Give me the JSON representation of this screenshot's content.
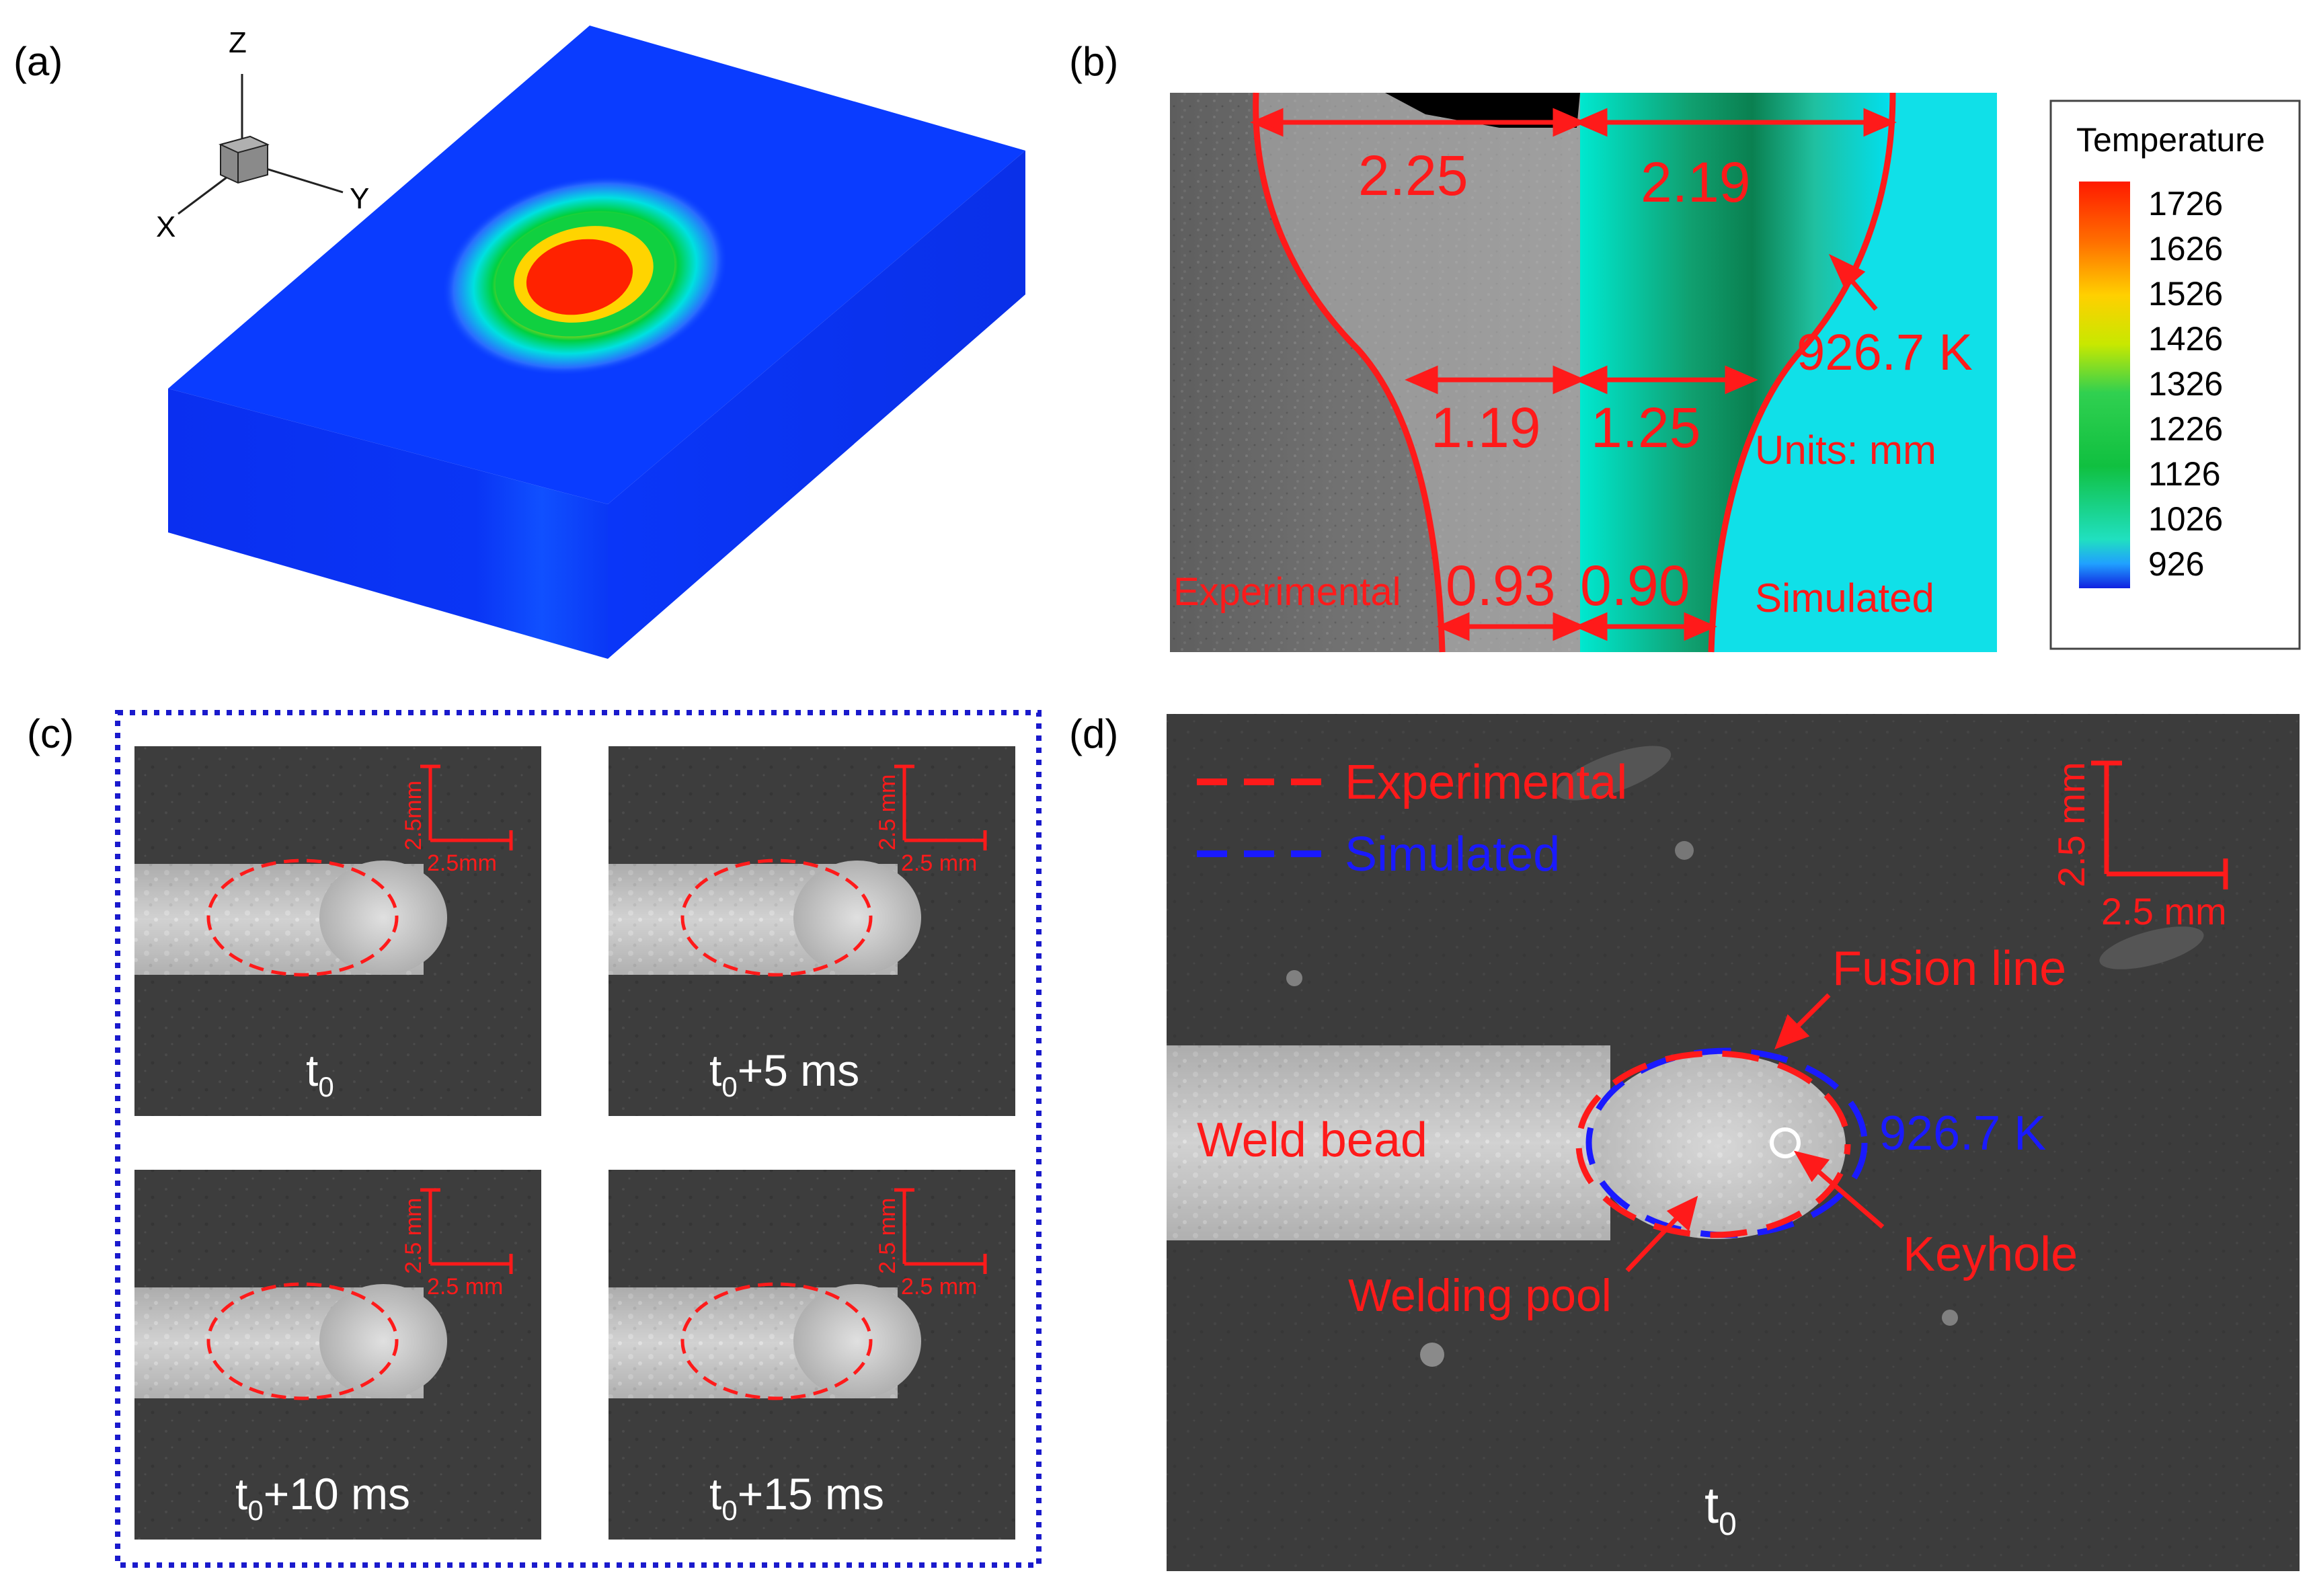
{
  "panel_labels": {
    "a": "(a)",
    "b": "(b)",
    "c": "(c)",
    "d": "(d)"
  },
  "colors": {
    "annotation_red": "#ff1a1a",
    "simulated_blue": "#1a1aff",
    "block_blue": "#0a3cff",
    "frame_dotted_blue": "#1a1acc"
  },
  "panel_a": {
    "axes": {
      "z": "Z",
      "x": "X",
      "y": "Y"
    }
  },
  "panel_b": {
    "top_left": "2.25",
    "top_right": "2.19",
    "mid_left": "1.19",
    "mid_right": "1.25",
    "bottom_left": "0.93",
    "bottom_right": "0.90",
    "isotherm": "926.7 K",
    "units": "Units: mm",
    "experimental": "Experimental",
    "simulated": "Simulated",
    "legend": {
      "title": "Temperature",
      "levels": [
        "1726",
        "1626",
        "1526",
        "1426",
        "1326",
        "1226",
        "1126",
        "1026",
        "926"
      ]
    }
  },
  "panel_c": {
    "scale_vertical": "2.5mm",
    "scale_vertical_b": "2.5 mm",
    "scale_horizontal": "2.5mm",
    "scale_horizontal_b": "2.5 mm",
    "frames": [
      {
        "t": "t",
        "sub": "0",
        "suffix": ""
      },
      {
        "t": "t",
        "sub": "0",
        "suffix": "+5 ms"
      },
      {
        "t": "t",
        "sub": "0",
        "suffix": "+10 ms"
      },
      {
        "t": "t",
        "sub": "0",
        "suffix": "+15 ms"
      }
    ]
  },
  "panel_d": {
    "legend_experimental": "Experimental",
    "legend_simulated": "Simulated",
    "scale_vertical": "2.5 mm",
    "scale_horizontal": "2.5 mm",
    "fusion_line": "Fusion line",
    "isotherm": "926.7 K",
    "weld_bead": "Weld bead",
    "keyhole": "Keyhole",
    "welding_pool": "Welding pool",
    "time": {
      "t": "t",
      "sub": "0"
    }
  }
}
